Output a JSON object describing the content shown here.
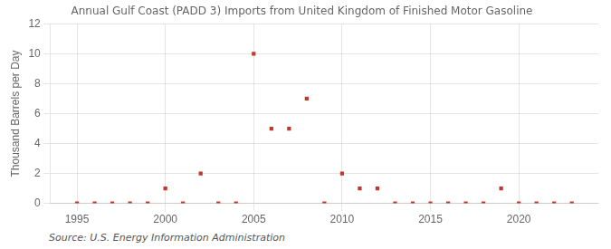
{
  "chart_data": {
    "type": "scatter",
    "title": "Annual Gulf Coast (PADD 3) Imports from United Kingdom of Finished Motor Gasoline",
    "ylabel": "Thousand Barrels per Day",
    "annotation": "Source: U.S. Energy Information Administration",
    "x": [
      1995,
      1996,
      1997,
      1998,
      1999,
      2000,
      2001,
      2002,
      2003,
      2004,
      2005,
      2006,
      2007,
      2008,
      2009,
      2010,
      2011,
      2012,
      2013,
      2014,
      2015,
      2016,
      2017,
      2018,
      2019,
      2020,
      2021,
      2022,
      2023
    ],
    "values": [
      0,
      0,
      0,
      0,
      0,
      1,
      0,
      2,
      0,
      0,
      10,
      5,
      5,
      7,
      0,
      2,
      1,
      1,
      0,
      0,
      0,
      0,
      0,
      0,
      1,
      0,
      0,
      0,
      0
    ],
    "color": "#c0392b",
    "marker": "square",
    "xlim": [
      1993.5,
      2024.5
    ],
    "xticks": [
      1995,
      2000,
      2005,
      2010,
      2015,
      2020
    ],
    "ylim": [
      0,
      12
    ],
    "yticks": [
      0,
      2,
      4,
      6,
      8,
      10,
      12
    ],
    "grid": true
  }
}
